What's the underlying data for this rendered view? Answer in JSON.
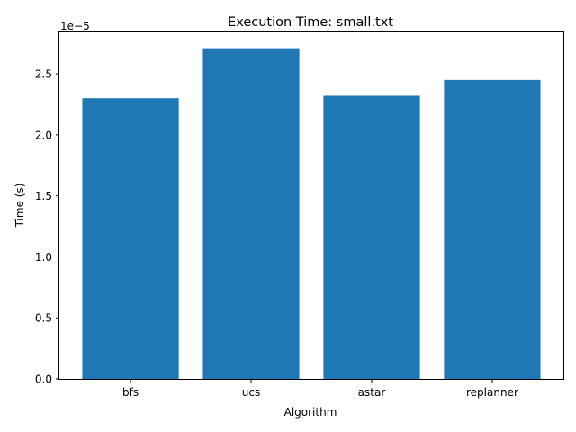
{
  "chart_data": {
    "type": "bar",
    "title": "Execution Time: small.txt",
    "xlabel": "Algorithm",
    "ylabel": "Time (s)",
    "categories": [
      "bfs",
      "ucs",
      "astar",
      "replanner"
    ],
    "values": [
      2.3e-05,
      2.71e-05,
      2.32e-05,
      2.45e-05
    ],
    "ylim": [
      0,
      2.84e-05
    ],
    "yticks": [
      0,
      5e-06,
      1e-05,
      1.5e-05,
      2e-05,
      2.5e-05
    ],
    "ytick_labels": [
      "0.0",
      "0.5",
      "1.0",
      "1.5",
      "2.0",
      "2.5"
    ],
    "offset_text": "1e−5",
    "bar_color": "#1f77b4",
    "grid": false,
    "legend": null
  }
}
